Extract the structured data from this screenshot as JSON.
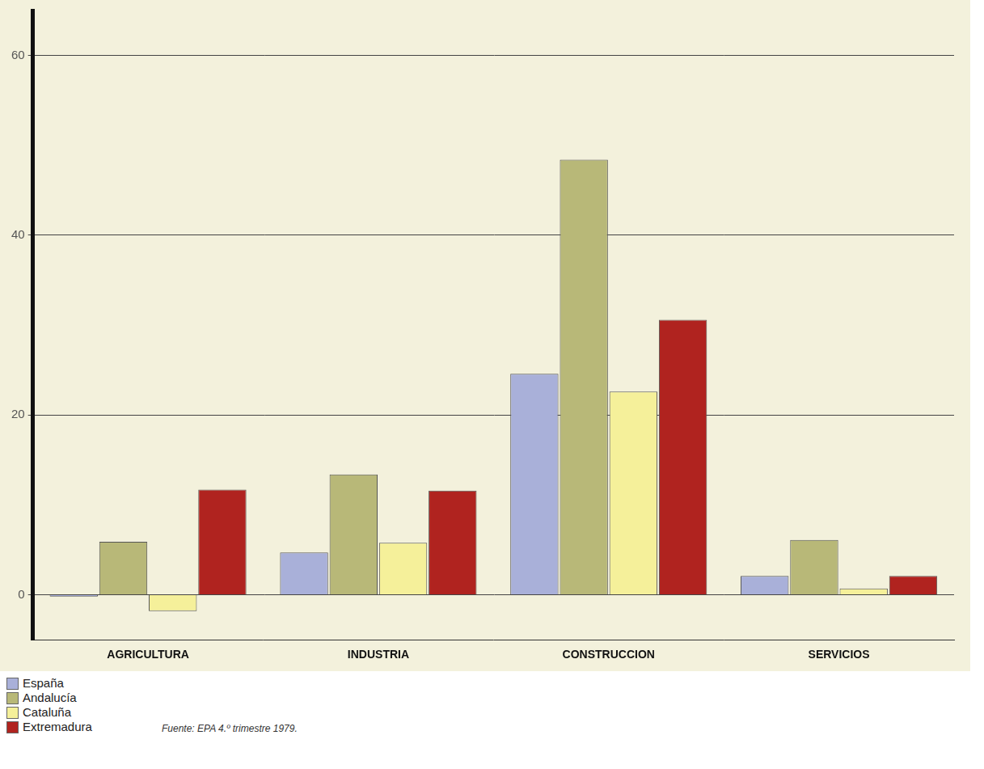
{
  "chart_data": {
    "type": "bar",
    "categories": [
      "AGRICULTURA",
      "INDUSTRIA",
      "CONSTRUCCION",
      "SERVICIOS"
    ],
    "series": [
      {
        "name": "España",
        "color": "#a9b0d9",
        "values": [
          -0.2,
          4.7,
          24.6,
          2.1
        ]
      },
      {
        "name": "Andalucía",
        "color": "#b8b878",
        "values": [
          5.9,
          13.4,
          48.4,
          6.1
        ]
      },
      {
        "name": "Cataluña",
        "color": "#f5f09a",
        "values": [
          -1.8,
          5.8,
          22.6,
          0.7
        ]
      },
      {
        "name": "Extremadura",
        "color": "#b0231f",
        "values": [
          11.7,
          11.6,
          30.6,
          2.1
        ]
      }
    ],
    "ylim": [
      -5,
      65
    ],
    "yticks": [
      0,
      20,
      40,
      60
    ],
    "grid": true,
    "legend": "bottom-left",
    "annotations": [
      "Fuente: EPA 4.º trimestre 1979."
    ]
  }
}
